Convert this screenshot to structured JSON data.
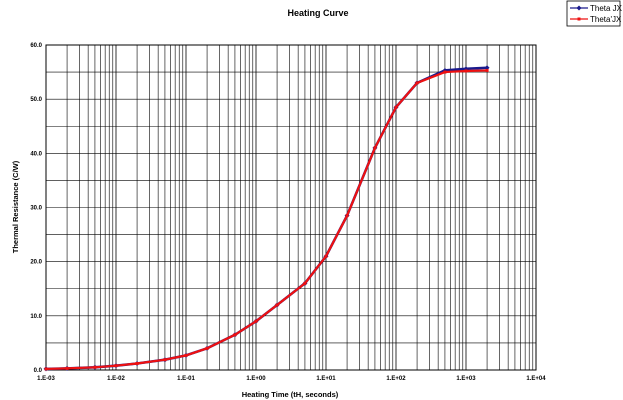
{
  "chart_data": {
    "type": "scatter",
    "title": "Heating Curve",
    "xlabel": "Heating Time (tH, seconds)",
    "ylabel": "Thermal Resistance (C/W)",
    "x_scale": "log",
    "xlim": [
      0.001,
      10000
    ],
    "ylim": [
      0,
      60
    ],
    "x_tick_labels": [
      "1.E-03",
      "1.E-02",
      "1.E-01",
      "1.E+00",
      "1.E+01",
      "1.E+02",
      "1.E+03",
      "1.E+04"
    ],
    "x_ticks": [
      0.001,
      0.01,
      0.1,
      1,
      10,
      100,
      1000,
      10000
    ],
    "y_tick_labels": [
      "0.0",
      "10.0",
      "20.0",
      "30.0",
      "40.0",
      "50.0",
      "60.0"
    ],
    "y_ticks": [
      0,
      10,
      20,
      30,
      40,
      50,
      60
    ],
    "grid": true,
    "legend_position": "top-right",
    "series": [
      {
        "name": "Theta JX",
        "color": "#1a1a8c",
        "marker": "diamond",
        "x": [
          0.001,
          0.002,
          0.005,
          0.01,
          0.02,
          0.05,
          0.1,
          0.2,
          0.5,
          1,
          2,
          5,
          10,
          20,
          50,
          100,
          200,
          500,
          1000,
          2000
        ],
        "y": [
          0.2,
          0.3,
          0.5,
          0.8,
          1.2,
          1.9,
          2.7,
          4.0,
          6.5,
          9.0,
          12.0,
          16.0,
          21.0,
          28.5,
          41.0,
          48.5,
          53.0,
          55.3,
          55.6,
          55.8
        ]
      },
      {
        "name": "Theta'JX",
        "color": "#ee1111",
        "marker": "square",
        "x": [
          0.001,
          0.002,
          0.005,
          0.01,
          0.02,
          0.05,
          0.1,
          0.2,
          0.5,
          1,
          2,
          5,
          10,
          20,
          50,
          100,
          200,
          500,
          1000,
          2000
        ],
        "y": [
          0.2,
          0.3,
          0.5,
          0.8,
          1.2,
          1.9,
          2.7,
          4.0,
          6.5,
          9.0,
          12.0,
          16.0,
          21.0,
          28.5,
          41.0,
          48.5,
          53.0,
          55.0,
          55.2,
          55.3
        ]
      }
    ]
  }
}
